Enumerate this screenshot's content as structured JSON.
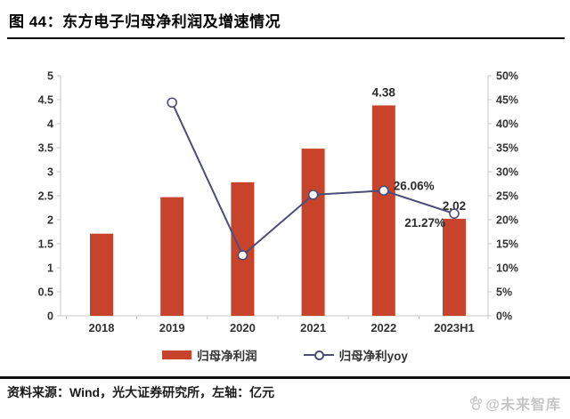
{
  "header": {
    "title": "图 44：东方电子归母净利润及增速情况"
  },
  "chart_data": {
    "type": "bar",
    "subtype": "bar+line combo, dual axis",
    "categories": [
      "2018",
      "2019",
      "2020",
      "2021",
      "2022",
      "2023H1"
    ],
    "series": [
      {
        "name": "归母净利润",
        "type": "bar",
        "axis": "left",
        "unit": "亿元",
        "values": [
          1.71,
          2.47,
          2.78,
          3.48,
          4.38,
          2.02
        ],
        "point_labels": [
          "",
          "",
          "",
          "",
          "4.38",
          "2.02"
        ],
        "color": "#C8432B"
      },
      {
        "name": "归母净利yoy",
        "type": "line",
        "axis": "right",
        "unit": "%",
        "values": [
          null,
          44.4,
          12.6,
          25.2,
          26.06,
          21.27
        ],
        "point_labels": [
          "",
          "",
          "",
          "",
          "26.06%",
          "21.27%"
        ],
        "color": "#4D4D78",
        "marker": "open-circle"
      }
    ],
    "left_axis": {
      "min": 0,
      "max": 5,
      "step": 0.5,
      "ticks": [
        "5",
        "4.5",
        "4",
        "3.5",
        "3",
        "2.5",
        "2",
        "1.5",
        "1",
        "0.5",
        "0"
      ]
    },
    "right_axis": {
      "min": 0,
      "max": 50,
      "step": 5,
      "ticks": [
        "50%",
        "45%",
        "40%",
        "35%",
        "30%",
        "25%",
        "20%",
        "15%",
        "10%",
        "5%",
        "0%"
      ]
    },
    "grid": false,
    "legend_position": "bottom"
  },
  "footer": {
    "source": "资料来源：Wind，光大证券研究所，左轴：亿元",
    "watermark": "@未来智库"
  }
}
